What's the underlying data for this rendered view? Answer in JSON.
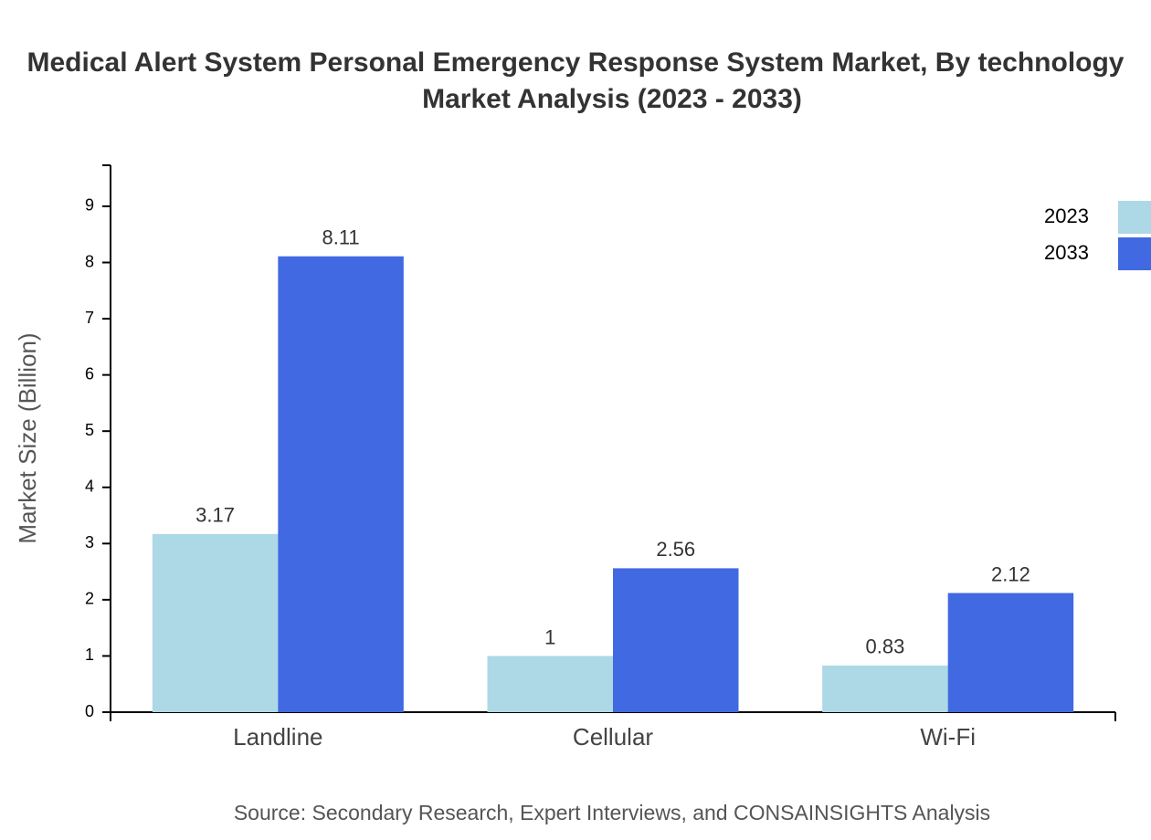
{
  "chart_data": {
    "type": "bar",
    "title": [
      "Medical Alert System Personal Emergency Response System Market, By technology",
      "Market Analysis (2023 - 2033)"
    ],
    "y_label": "Market Size (Billion)",
    "source": "Source: Secondary Research, Expert Interviews, and CONSAINSIGHTS Analysis",
    "categories": [
      "Landline",
      "Cellular",
      "Wi-Fi"
    ],
    "series": [
      {
        "name": "2023",
        "color": "#add8e6",
        "values": [
          3.17,
          1,
          0.83
        ]
      },
      {
        "name": "2033",
        "color": "#4169e1",
        "values": [
          8.11,
          2.56,
          2.12
        ]
      }
    ],
    "ylim": [
      0,
      9.73
    ],
    "yticks": [
      0,
      1,
      2,
      3,
      4,
      5,
      6,
      7,
      8,
      9
    ],
    "legend": "top-right"
  }
}
